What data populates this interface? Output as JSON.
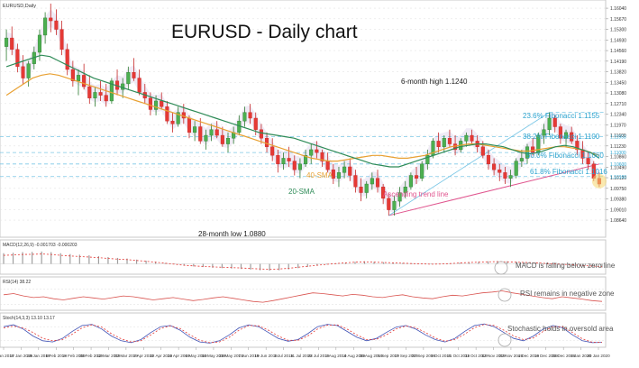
{
  "chart_data": {
    "type": "candlestick",
    "symbol": "EURUSD,Daily",
    "title": "EURUSD - Daily chart",
    "ylim": [
      1.082,
      1.162
    ],
    "price_ticks": [
      "1.16040",
      "1.15670",
      "1.15300",
      "1.14930",
      "1.14560",
      "1.14190",
      "1.13820",
      "1.13450",
      "1.13080",
      "1.12710",
      "1.12340",
      "1.11970",
      "1.11600",
      "1.11230",
      "1.10860",
      "1.10490",
      "1.10120",
      "1.09750",
      "1.09380",
      "1.09010",
      "1.08640"
    ],
    "date_labels": [
      "4 Jan 2019",
      "17 Jan 2019",
      "29 Jan 2019",
      "8 Feb 2019",
      "18 Feb 2019",
      "28 Feb 2019",
      "12 Mar 2019",
      "22 Mar 2019",
      "2 Apr 2019",
      "12 Apr 2019",
      "24 Apr 2019",
      "6 May 2019",
      "16 May 2019",
      "28 May 2019",
      "7 Jun 2019",
      "19 Jun 2019",
      "1 Jul 2019",
      "11 Jul 2019",
      "23 Jul 2019",
      "2 Aug 2019",
      "14 Aug 2019",
      "26 Aug 2019",
      "5 Sep 2019",
      "17 Sep 2019",
      "27 Sep 2019",
      "9 Oct 2019",
      "21 Oct 2019",
      "31 Oct 2019",
      "12 Nov 2019",
      "22 Nov 2019",
      "4 Dec 2019",
      "16 Dec 2019",
      "26 Dec 2019",
      "8 Jan 2020",
      "20 Jan 2020"
    ],
    "candles": [
      [
        1.147,
        1.153,
        1.142,
        1.15
      ],
      [
        1.15,
        1.154,
        1.144,
        1.146
      ],
      [
        1.146,
        1.148,
        1.138,
        1.14
      ],
      [
        1.14,
        1.144,
        1.134,
        1.136
      ],
      [
        1.136,
        1.142,
        1.133,
        1.141
      ],
      [
        1.141,
        1.147,
        1.139,
        1.145
      ],
      [
        1.145,
        1.153,
        1.142,
        1.151
      ],
      [
        1.151,
        1.159,
        1.148,
        1.157
      ],
      [
        1.157,
        1.162,
        1.152,
        1.156
      ],
      [
        1.156,
        1.16,
        1.151,
        1.153
      ],
      [
        1.153,
        1.156,
        1.144,
        1.146
      ],
      [
        1.146,
        1.148,
        1.137,
        1.139
      ],
      [
        1.139,
        1.142,
        1.133,
        1.135
      ],
      [
        1.135,
        1.139,
        1.13,
        1.137
      ],
      [
        1.137,
        1.141,
        1.132,
        1.133
      ],
      [
        1.133,
        1.137,
        1.127,
        1.129
      ],
      [
        1.129,
        1.133,
        1.126,
        1.131
      ],
      [
        1.131,
        1.135,
        1.128,
        1.13
      ],
      [
        1.13,
        1.134,
        1.126,
        1.128
      ],
      [
        1.128,
        1.136,
        1.127,
        1.135
      ],
      [
        1.135,
        1.139,
        1.13,
        1.132
      ],
      [
        1.132,
        1.136,
        1.129,
        1.134
      ],
      [
        1.134,
        1.14,
        1.132,
        1.138
      ],
      [
        1.138,
        1.143,
        1.135,
        1.136
      ],
      [
        1.136,
        1.139,
        1.13,
        1.131
      ],
      [
        1.131,
        1.134,
        1.127,
        1.129
      ],
      [
        1.129,
        1.131,
        1.123,
        1.125
      ],
      [
        1.125,
        1.13,
        1.123,
        1.128
      ],
      [
        1.128,
        1.131,
        1.125,
        1.126
      ],
      [
        1.126,
        1.128,
        1.12,
        1.121
      ],
      [
        1.121,
        1.124,
        1.117,
        1.12
      ],
      [
        1.12,
        1.126,
        1.119,
        1.124
      ],
      [
        1.124,
        1.127,
        1.12,
        1.122
      ],
      [
        1.122,
        1.123,
        1.115,
        1.117
      ],
      [
        1.117,
        1.121,
        1.114,
        1.119
      ],
      [
        1.119,
        1.122,
        1.113,
        1.114
      ],
      [
        1.114,
        1.118,
        1.111,
        1.116
      ],
      [
        1.116,
        1.12,
        1.114,
        1.118
      ],
      [
        1.118,
        1.121,
        1.115,
        1.116
      ],
      [
        1.116,
        1.119,
        1.112,
        1.113
      ],
      [
        1.113,
        1.117,
        1.11,
        1.115
      ],
      [
        1.115,
        1.119,
        1.113,
        1.117
      ],
      [
        1.117,
        1.123,
        1.116,
        1.121
      ],
      [
        1.121,
        1.126,
        1.119,
        1.124
      ],
      [
        1.124,
        1.127,
        1.12,
        1.122
      ],
      [
        1.122,
        1.124,
        1.116,
        1.118
      ],
      [
        1.118,
        1.12,
        1.113,
        1.115
      ],
      [
        1.115,
        1.117,
        1.11,
        1.112
      ],
      [
        1.112,
        1.115,
        1.107,
        1.109
      ],
      [
        1.109,
        1.111,
        1.103,
        1.106
      ],
      [
        1.106,
        1.11,
        1.104,
        1.108
      ],
      [
        1.108,
        1.112,
        1.105,
        1.107
      ],
      [
        1.107,
        1.109,
        1.102,
        1.104
      ],
      [
        1.104,
        1.108,
        1.101,
        1.106
      ],
      [
        1.106,
        1.111,
        1.105,
        1.109
      ],
      [
        1.109,
        1.113,
        1.106,
        1.111
      ],
      [
        1.111,
        1.114,
        1.108,
        1.11
      ],
      [
        1.11,
        1.111,
        1.105,
        1.107
      ],
      [
        1.107,
        1.11,
        1.103,
        1.104
      ],
      [
        1.104,
        1.106,
        1.099,
        1.101
      ],
      [
        1.101,
        1.105,
        1.098,
        1.103
      ],
      [
        1.103,
        1.107,
        1.101,
        1.105
      ],
      [
        1.105,
        1.108,
        1.1,
        1.102
      ],
      [
        1.102,
        1.104,
        1.096,
        1.098
      ],
      [
        1.098,
        1.101,
        1.093,
        1.096
      ],
      [
        1.096,
        1.1,
        1.094,
        1.099
      ],
      [
        1.099,
        1.103,
        1.097,
        1.101
      ],
      [
        1.101,
        1.104,
        1.096,
        1.098
      ],
      [
        1.098,
        1.099,
        1.092,
        1.094
      ],
      [
        1.094,
        1.096,
        1.088,
        1.09
      ],
      [
        1.09,
        1.095,
        1.088,
        1.093
      ],
      [
        1.093,
        1.098,
        1.091,
        1.096
      ],
      [
        1.096,
        1.1,
        1.094,
        1.098
      ],
      [
        1.098,
        1.103,
        1.097,
        1.102
      ],
      [
        1.102,
        1.105,
        1.099,
        1.101
      ],
      [
        1.101,
        1.107,
        1.1,
        1.106
      ],
      [
        1.106,
        1.111,
        1.104,
        1.109
      ],
      [
        1.109,
        1.115,
        1.108,
        1.114
      ],
      [
        1.114,
        1.117,
        1.11,
        1.112
      ],
      [
        1.112,
        1.116,
        1.11,
        1.115
      ],
      [
        1.115,
        1.118,
        1.112,
        1.113
      ],
      [
        1.113,
        1.116,
        1.109,
        1.111
      ],
      [
        1.111,
        1.115,
        1.11,
        1.114
      ],
      [
        1.114,
        1.117,
        1.112,
        1.116
      ],
      [
        1.116,
        1.118,
        1.113,
        1.114
      ],
      [
        1.114,
        1.116,
        1.11,
        1.112
      ],
      [
        1.112,
        1.114,
        1.108,
        1.109
      ],
      [
        1.109,
        1.111,
        1.104,
        1.106
      ],
      [
        1.106,
        1.108,
        1.102,
        1.104
      ],
      [
        1.104,
        1.106,
        1.1,
        1.103
      ],
      [
        1.103,
        1.105,
        1.099,
        1.101
      ],
      [
        1.101,
        1.104,
        1.098,
        1.102
      ],
      [
        1.102,
        1.108,
        1.101,
        1.107
      ],
      [
        1.107,
        1.111,
        1.105,
        1.108
      ],
      [
        1.108,
        1.113,
        1.106,
        1.112
      ],
      [
        1.112,
        1.115,
        1.109,
        1.11
      ],
      [
        1.11,
        1.117,
        1.109,
        1.116
      ],
      [
        1.116,
        1.12,
        1.113,
        1.118
      ],
      [
        1.118,
        1.124,
        1.116,
        1.122
      ],
      [
        1.122,
        1.123,
        1.117,
        1.119
      ],
      [
        1.119,
        1.12,
        1.113,
        1.115
      ],
      [
        1.115,
        1.118,
        1.112,
        1.117
      ],
      [
        1.117,
        1.119,
        1.113,
        1.114
      ],
      [
        1.114,
        1.116,
        1.109,
        1.111
      ],
      [
        1.111,
        1.114,
        1.106,
        1.108
      ],
      [
        1.108,
        1.11,
        1.104,
        1.106
      ],
      [
        1.106,
        1.107,
        1.1,
        1.101
      ],
      [
        1.101,
        1.103,
        1.098,
        1.099
      ]
    ],
    "sma20": [
      1.14,
      1.141,
      1.142,
      1.143,
      1.144,
      1.1435,
      1.142,
      1.1405,
      1.139,
      1.1375,
      1.136,
      1.135,
      1.134,
      1.133,
      1.132,
      1.131,
      1.13,
      1.129,
      1.128,
      1.127,
      1.126,
      1.125,
      1.124,
      1.123,
      1.122,
      1.121,
      1.12,
      1.119,
      1.118,
      1.117,
      1.1165,
      1.116,
      1.1155,
      1.115,
      1.114,
      1.113,
      1.112,
      1.111,
      1.11,
      1.109,
      1.108,
      1.107,
      1.106,
      1.1055,
      1.105,
      1.105,
      1.106,
      1.107,
      1.108,
      1.109,
      1.11,
      1.111,
      1.112,
      1.1125,
      1.113,
      1.113,
      1.1125,
      1.112,
      1.111,
      1.11,
      1.1095,
      1.11,
      1.111,
      1.112,
      1.1125,
      1.112,
      1.111,
      1.11,
      1.108
    ],
    "sma40": [
      1.13,
      1.132,
      1.134,
      1.136,
      1.137,
      1.1375,
      1.137,
      1.136,
      1.135,
      1.134,
      1.133,
      1.132,
      1.131,
      1.13,
      1.129,
      1.128,
      1.127,
      1.126,
      1.125,
      1.124,
      1.123,
      1.122,
      1.121,
      1.12,
      1.119,
      1.118,
      1.117,
      1.116,
      1.115,
      1.114,
      1.113,
      1.112,
      1.111,
      1.11,
      1.109,
      1.108,
      1.1075,
      1.107,
      1.107,
      1.1075,
      1.108,
      1.1085,
      1.109,
      1.109,
      1.1085,
      1.108,
      1.108,
      1.1085,
      1.109,
      1.11,
      1.111,
      1.112,
      1.1125,
      1.113,
      1.113,
      1.1125,
      1.112,
      1.1115,
      1.111,
      1.1105,
      1.1105,
      1.111,
      1.1115,
      1.112,
      1.112,
      1.1115,
      1.111,
      1.11,
      1.109
    ],
    "fibonacci": [
      {
        "label": "23.6% Fibonacci 1.1155",
        "price": 1.1155,
        "axis": "1.11553"
      },
      {
        "label": "38.2% Fibonacci 1.1100",
        "price": 1.11,
        "axis": "1.11000"
      },
      {
        "label": "50.0% Fibonacci 1.1060",
        "price": 1.106,
        "axis": "1.10600"
      },
      {
        "label": "61.8% Fibonacci 1.1016",
        "price": 1.1016,
        "axis": "1.10160"
      }
    ],
    "annotations": {
      "six_month_high": "6-month high 1.1240",
      "low": "28-month low 1.0880",
      "trend_line": "Ascending trend line",
      "sma40": "40-SMA",
      "sma20": "20-SMA"
    },
    "indicators": {
      "macd": {
        "label": "MACD(12,26,9) -0.001703 -0.000203",
        "note": "MACD is falling below zero line",
        "values": [
          0.005,
          0.0052,
          0.0055,
          0.0056,
          0.0058,
          0.0055,
          0.005,
          0.0046,
          0.0043,
          0.004,
          0.0036,
          0.0032,
          0.0028,
          0.0025,
          0.002,
          0.0015,
          0.001,
          0.0004,
          -0.0002,
          -0.0008,
          -0.0012,
          -0.0015,
          -0.0018,
          -0.002,
          -0.0022,
          -0.0024,
          -0.0027,
          -0.003,
          -0.0032,
          -0.003,
          -0.0026,
          -0.002,
          -0.0014,
          -0.0008,
          -0.0003,
          0.0002,
          0.0006,
          0.001,
          0.0012,
          0.001,
          0.0008,
          0.0006,
          0.0004,
          0.0002,
          0.0,
          -0.0002,
          -0.0001,
          0.0002,
          0.0005,
          0.0008,
          0.001,
          0.0012,
          0.0013,
          0.0012,
          0.001,
          0.0008,
          0.0006,
          0.0003,
          0.0,
          -0.0003,
          -0.0006,
          -0.001,
          -0.0013,
          -0.0017
        ]
      },
      "rsi": {
        "label": "RSI(14) 38.22",
        "note": "RSI remains in negative zone",
        "values": [
          55,
          58,
          52,
          48,
          50,
          45,
          42,
          46,
          50,
          47,
          44,
          48,
          52,
          50,
          46,
          42,
          45,
          48,
          44,
          40,
          43,
          47,
          50,
          46,
          42,
          38,
          36,
          40,
          45,
          50,
          55,
          60,
          58,
          55,
          52,
          56,
          54,
          50,
          48,
          52,
          55,
          50,
          47,
          45,
          50,
          54,
          52,
          56,
          60,
          62,
          65,
          60,
          56,
          52,
          48,
          45,
          50,
          47,
          44,
          40,
          38
        ]
      },
      "stoch": {
        "label": "Stoch(14,3,3) 13.10 13.17",
        "note": "Stochastic holds in oversold area",
        "k": [
          80,
          88,
          70,
          40,
          20,
          15,
          30,
          60,
          85,
          90,
          70,
          40,
          20,
          12,
          25,
          55,
          80,
          85,
          65,
          35,
          15,
          10,
          20,
          45,
          75,
          88,
          80,
          55,
          30,
          18,
          25,
          50,
          80,
          90,
          85,
          60,
          35,
          20,
          30,
          55,
          78,
          85,
          70,
          45,
          25,
          15,
          30,
          60,
          85,
          92,
          80,
          55,
          30,
          20,
          40,
          70,
          85,
          75,
          45,
          20,
          12,
          13
        ],
        "d": [
          75,
          82,
          75,
          55,
          30,
          20,
          25,
          48,
          75,
          88,
          78,
          50,
          28,
          15,
          20,
          45,
          72,
          84,
          72,
          45,
          22,
          12,
          15,
          35,
          65,
          85,
          84,
          65,
          40,
          22,
          22,
          40,
          70,
          86,
          88,
          70,
          45,
          25,
          26,
          45,
          70,
          83,
          76,
          55,
          32,
          18,
          25,
          48,
          76,
          90,
          85,
          65,
          40,
          25,
          32,
          60,
          80,
          80,
          55,
          28,
          14,
          13
        ]
      }
    }
  }
}
